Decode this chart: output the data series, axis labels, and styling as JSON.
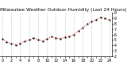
{
  "title": "Milwaukee Weather Outdoor Humidity (Last 24 Hours)",
  "x_values": [
    0,
    1,
    2,
    3,
    4,
    5,
    6,
    7,
    8,
    9,
    10,
    11,
    12,
    13,
    14,
    15,
    16,
    17,
    18,
    19,
    20,
    21,
    22,
    23,
    24
  ],
  "y_values": [
    52,
    47,
    43,
    41,
    44,
    48,
    50,
    54,
    51,
    48,
    52,
    56,
    54,
    52,
    55,
    57,
    60,
    66,
    72,
    79,
    83,
    87,
    91,
    89,
    86
  ],
  "ylim": [
    20,
    100
  ],
  "xlim": [
    -0.5,
    24.5
  ],
  "line_color": "#cc0000",
  "marker_color": "#000000",
  "bg_color": "#ffffff",
  "grid_color": "#999999",
  "title_fontsize": 4.2,
  "tick_fontsize": 3.5,
  "ytick_values": [
    20,
    30,
    40,
    50,
    60,
    70,
    80,
    90,
    100
  ],
  "ytick_labels": [
    "2",
    "3",
    "4",
    "5",
    "6",
    "7",
    "8",
    "9",
    "0"
  ],
  "xtick_values": [
    0,
    1,
    2,
    3,
    4,
    5,
    6,
    7,
    8,
    9,
    10,
    11,
    12,
    13,
    14,
    15,
    16,
    17,
    18,
    19,
    20,
    21,
    22,
    23,
    24
  ],
  "vgrid_positions": [
    0,
    2,
    4,
    6,
    8,
    10,
    12,
    14,
    16,
    18,
    20,
    22,
    24
  ]
}
